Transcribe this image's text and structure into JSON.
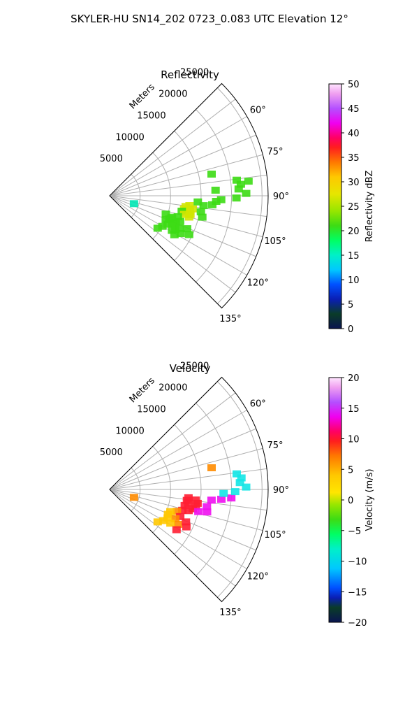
{
  "suptitle": "SKYLER-HU  SN14_202  0723_0.083 UTC Elevation 12°",
  "colors": {
    "grid": "#b0b0b0",
    "axis": "#000000",
    "refl_main": "#3cdc14",
    "refl_core": "#d2e600",
    "refl_edge": "#00e6b4",
    "vel_red": "#ff1e32",
    "vel_magenta": "#f010f0",
    "vel_orange": "#ff8c00",
    "vel_yellow": "#ffc800",
    "vel_cyan": "#14e6e6"
  },
  "chart_data": [
    {
      "type": "polar sector (PPI radar scan)",
      "title": "Reflectivity",
      "radial_label": "Meters",
      "radial_ticks": [
        5000,
        10000,
        15000,
        20000,
        25000
      ],
      "radial_tick_labels": [
        "5000",
        "10000",
        "15000",
        "20000",
        "25000"
      ],
      "range_max_m": 26000,
      "azimuth_range_deg": [
        45,
        135
      ],
      "azimuth_tick_labels": [
        "60°",
        "75°",
        "90°",
        "105°",
        "120°",
        "135°"
      ],
      "gridlines_deg": [
        45,
        52.5,
        60,
        67.5,
        75,
        82.5,
        90,
        97.5,
        105,
        112.5,
        120,
        127.5,
        135
      ],
      "grid": true,
      "colorbar": {
        "label": "Reflectivity dBZ",
        "min": 0,
        "max": 50,
        "ticks": [
          0,
          5,
          10,
          15,
          20,
          25,
          30,
          35,
          40,
          45,
          50
        ],
        "tick_labels": [
          "0",
          "5",
          "10",
          "15",
          "20",
          "25",
          "30",
          "35",
          "40",
          "45",
          "50"
        ]
      },
      "echoes": [
        {
          "az": 97,
          "r": 13200,
          "dbz": 22
        },
        {
          "az": 98,
          "r": 12600,
          "dbz": 25
        },
        {
          "az": 99,
          "r": 13800,
          "dbz": 26
        },
        {
          "az": 100,
          "r": 12400,
          "dbz": 24
        },
        {
          "az": 101,
          "r": 13400,
          "dbz": 22
        },
        {
          "az": 102,
          "r": 12100,
          "dbz": 20
        },
        {
          "az": 103,
          "r": 13600,
          "dbz": 23
        },
        {
          "az": 104,
          "r": 12600,
          "dbz": 21
        },
        {
          "az": 105,
          "r": 13500,
          "dbz": 22
        },
        {
          "az": 96,
          "r": 15500,
          "dbz": 20
        },
        {
          "az": 95,
          "r": 16900,
          "dbz": 19
        },
        {
          "az": 94,
          "r": 14500,
          "dbz": 18
        },
        {
          "az": 93,
          "r": 17500,
          "dbz": 18
        },
        {
          "az": 92,
          "r": 18300,
          "dbz": 18
        },
        {
          "az": 100,
          "r": 15200,
          "dbz": 19
        },
        {
          "az": 103,
          "r": 15600,
          "dbz": 18
        },
        {
          "az": 107,
          "r": 11700,
          "dbz": 19
        },
        {
          "az": 109,
          "r": 10800,
          "dbz": 18
        },
        {
          "az": 110,
          "r": 12300,
          "dbz": 20
        },
        {
          "az": 111,
          "r": 10500,
          "dbz": 18
        },
        {
          "az": 112,
          "r": 11700,
          "dbz": 19
        },
        {
          "az": 113,
          "r": 10000,
          "dbz": 17
        },
        {
          "az": 114,
          "r": 11200,
          "dbz": 18
        },
        {
          "az": 115,
          "r": 12600,
          "dbz": 19
        },
        {
          "az": 116,
          "r": 10600,
          "dbz": 18
        },
        {
          "az": 117,
          "r": 12100,
          "dbz": 18
        },
        {
          "az": 118,
          "r": 13200,
          "dbz": 18
        },
        {
          "az": 119,
          "r": 11700,
          "dbz": 17
        },
        {
          "az": 120,
          "r": 10000,
          "dbz": 16
        },
        {
          "az": 121,
          "r": 12400,
          "dbz": 17
        },
        {
          "az": 116,
          "r": 14500,
          "dbz": 18
        },
        {
          "az": 113,
          "r": 13800,
          "dbz": 18
        },
        {
          "az": 124,
          "r": 9500,
          "dbz": 15
        },
        {
          "az": 108,
          "r": 9700,
          "dbz": 15
        },
        {
          "az": 78,
          "r": 17100,
          "dbz": 19
        },
        {
          "az": 83,
          "r": 21000,
          "dbz": 19
        },
        {
          "az": 85,
          "r": 21600,
          "dbz": 18
        },
        {
          "az": 87,
          "r": 21200,
          "dbz": 20
        },
        {
          "az": 89,
          "r": 22400,
          "dbz": 19
        },
        {
          "az": 84,
          "r": 22900,
          "dbz": 18
        },
        {
          "az": 91,
          "r": 20800,
          "dbz": 17
        },
        {
          "az": 87,
          "r": 17400,
          "dbz": 18
        },
        {
          "az": 108,
          "r": 4200,
          "dbz": 14
        }
      ]
    },
    {
      "type": "polar sector (PPI radar scan)",
      "title": "Velocity",
      "radial_label": "Meters",
      "radial_ticks": [
        5000,
        10000,
        15000,
        20000,
        25000
      ],
      "radial_tick_labels": [
        "5000",
        "10000",
        "15000",
        "20000",
        "25000"
      ],
      "range_max_m": 26000,
      "azimuth_range_deg": [
        45,
        135
      ],
      "azimuth_tick_labels": [
        "60°",
        "75°",
        "90°",
        "105°",
        "120°",
        "135°"
      ],
      "gridlines_deg": [
        45,
        52.5,
        60,
        67.5,
        75,
        82.5,
        90,
        97.5,
        105,
        112.5,
        120,
        127.5,
        135
      ],
      "grid": true,
      "colorbar": {
        "label": "Velocity (m/s)",
        "min": -20,
        "max": 20,
        "ticks": [
          -20,
          -15,
          -10,
          -5,
          0,
          5,
          10,
          15,
          20
        ],
        "tick_labels": [
          "−20",
          "−15",
          "−10",
          "−5",
          "0",
          "5",
          "10",
          "15",
          "20"
        ]
      },
      "echoes": [
        {
          "az": 96,
          "r": 13000,
          "vel": 10
        },
        {
          "az": 97,
          "r": 14200,
          "vel": 12
        },
        {
          "az": 98,
          "r": 12800,
          "vel": 11
        },
        {
          "az": 99,
          "r": 14600,
          "vel": 13
        },
        {
          "az": 100,
          "r": 13100,
          "vel": 10
        },
        {
          "az": 101,
          "r": 14400,
          "vel": 11
        },
        {
          "az": 102,
          "r": 12600,
          "vel": 10
        },
        {
          "az": 103,
          "r": 14000,
          "vel": 12
        },
        {
          "az": 104,
          "r": 15000,
          "vel": 14
        },
        {
          "az": 105,
          "r": 13400,
          "vel": 11
        },
        {
          "az": 96,
          "r": 16800,
          "vel": 16
        },
        {
          "az": 95,
          "r": 18400,
          "vel": 17
        },
        {
          "az": 94,
          "r": 20000,
          "vel": 16
        },
        {
          "az": 100,
          "r": 16200,
          "vel": 15
        },
        {
          "az": 103,
          "r": 16400,
          "vel": 15
        },
        {
          "az": 106,
          "r": 12400,
          "vel": 9
        },
        {
          "az": 108,
          "r": 11600,
          "vel": 7
        },
        {
          "az": 110,
          "r": 10600,
          "vel": 4
        },
        {
          "az": 111,
          "r": 12400,
          "vel": 8
        },
        {
          "az": 113,
          "r": 10400,
          "vel": 3
        },
        {
          "az": 114,
          "r": 11800,
          "vel": 6
        },
        {
          "az": 116,
          "r": 10600,
          "vel": 2
        },
        {
          "az": 117,
          "r": 12600,
          "vel": 7
        },
        {
          "az": 119,
          "r": 11400,
          "vel": 4
        },
        {
          "az": 120,
          "r": 10200,
          "vel": 2
        },
        {
          "az": 116,
          "r": 14000,
          "vel": 10
        },
        {
          "az": 113,
          "r": 13600,
          "vel": 9
        },
        {
          "az": 121,
          "r": 12800,
          "vel": 8
        },
        {
          "az": 124,
          "r": 9500,
          "vel": 1
        },
        {
          "az": 83,
          "r": 21000,
          "vel": -12
        },
        {
          "az": 85,
          "r": 21700,
          "vel": -13
        },
        {
          "az": 87,
          "r": 21400,
          "vel": -12
        },
        {
          "az": 89,
          "r": 22400,
          "vel": -11
        },
        {
          "az": 91,
          "r": 20600,
          "vel": -13
        },
        {
          "az": 92,
          "r": 18700,
          "vel": -14
        },
        {
          "az": 78,
          "r": 17100,
          "vel": 6
        },
        {
          "az": 108,
          "r": 4200,
          "vel": 6
        }
      ]
    }
  ]
}
